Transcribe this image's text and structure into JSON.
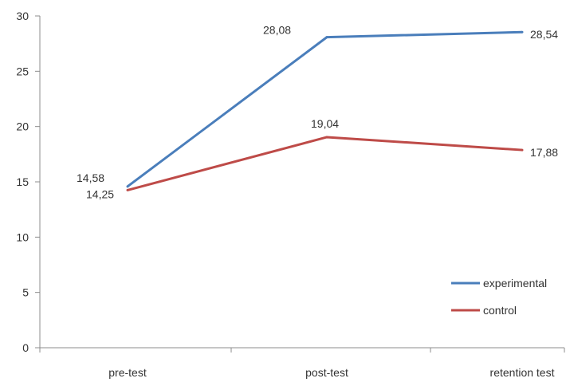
{
  "chart_data": {
    "type": "line",
    "categories": [
      "pre-test",
      "post-test",
      "retention test"
    ],
    "series": [
      {
        "name": "experimental",
        "values": [
          14.58,
          28.08,
          28.54
        ],
        "labels": [
          "14,58",
          "28,08",
          "28,54"
        ],
        "color": "#4a7ebb"
      },
      {
        "name": "control",
        "values": [
          14.25,
          19.04,
          17.88
        ],
        "labels": [
          "14,25",
          "19,04",
          "17,88"
        ],
        "color": "#be4b48"
      }
    ],
    "ylim": [
      0,
      30
    ],
    "yticks": [
      "0",
      "5",
      "10",
      "15",
      "20",
      "25",
      "30"
    ],
    "grid": false,
    "legend": "right"
  }
}
